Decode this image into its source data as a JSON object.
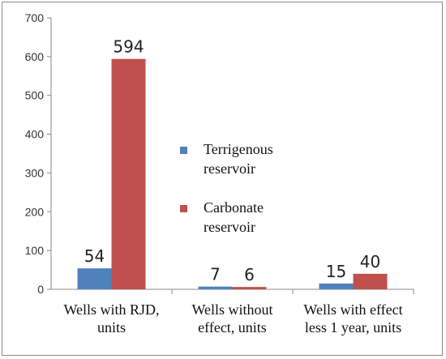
{
  "chart_data": {
    "type": "bar",
    "categories": [
      [
        "Wells with RJD,",
        "units"
      ],
      [
        "Wells without",
        "effect, units"
      ],
      [
        "Wells with effect",
        "less 1 year, units"
      ]
    ],
    "series": [
      {
        "name": [
          "Terrigenous",
          "reservoir"
        ],
        "values": [
          54,
          7,
          15
        ],
        "color": "#4f81bd"
      },
      {
        "name": [
          "Carbonate",
          "reservoir"
        ],
        "values": [
          594,
          6,
          40
        ],
        "color": "#c0504d"
      }
    ],
    "ylim": [
      0,
      700
    ],
    "yticks": [
      0,
      100,
      200,
      300,
      400,
      500,
      600,
      700
    ],
    "grid": false,
    "legend_position": "center-right",
    "data_labels": true
  }
}
